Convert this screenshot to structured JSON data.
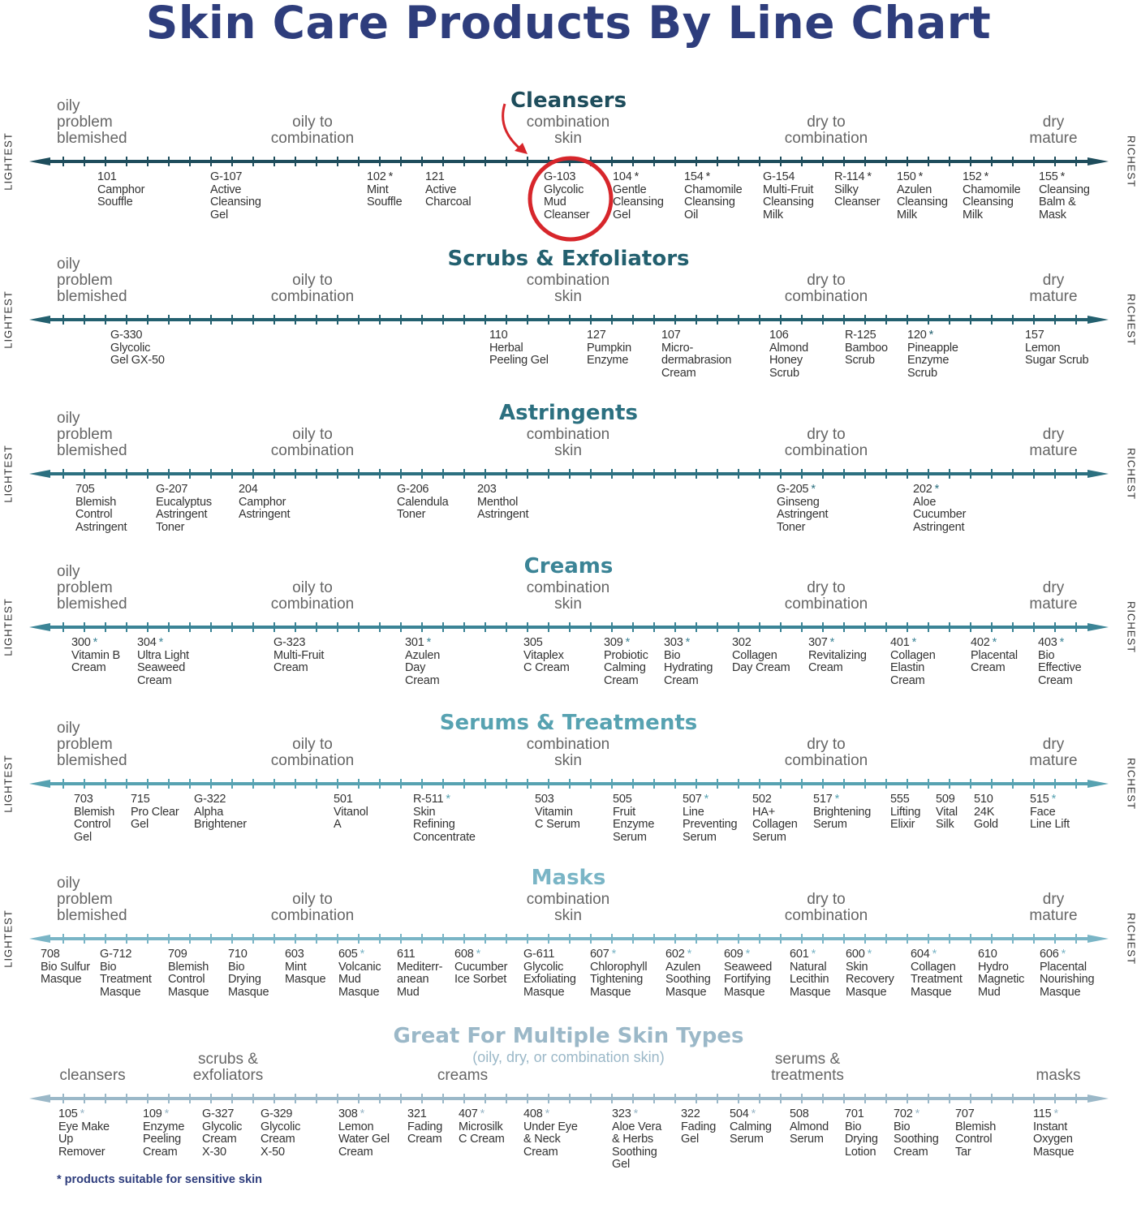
{
  "title": "Skin Care Products By Line Chart",
  "footnote": "* products suitable for sensitive skin",
  "axis_left_label": "LIGHTEST",
  "axis_right_label": "RICHEST",
  "default_skin_types": [
    "oily\nproblem\nblemished",
    "oily to\ncombination",
    "combination\nskin",
    "dry to\ncombination",
    "dry\nmature"
  ],
  "highlight": {
    "product": "G-103",
    "color": "#d7262b"
  },
  "sections": [
    {
      "title": "Cleansers",
      "color": "#1e4d5c",
      "products": [
        {
          "code": "101",
          "sensitive": false,
          "name": "Camphor\nSouffle"
        },
        {
          "code": "G-107",
          "sensitive": false,
          "name": "Active\nCleansing\nGel"
        },
        {
          "code": "102",
          "sensitive": true,
          "name": "Mint\nSouffle"
        },
        {
          "code": "121",
          "sensitive": false,
          "name": "Active\nCharcoal"
        },
        {
          "code": "G-103",
          "sensitive": false,
          "name": "Glycolic\nMud\nCleanser"
        },
        {
          "code": "104",
          "sensitive": true,
          "name": "Gentle\nCleansing\nGel"
        },
        {
          "code": "154",
          "sensitive": true,
          "name": "Chamomile\nCleansing\nOil"
        },
        {
          "code": "G-154",
          "sensitive": false,
          "name": "Multi-Fruit\nCleansing\nMilk"
        },
        {
          "code": "R-114",
          "sensitive": true,
          "name": "Silky\nCleanser"
        },
        {
          "code": "150",
          "sensitive": true,
          "name": "Azulen\nCleansing\nMilk"
        },
        {
          "code": "152",
          "sensitive": true,
          "name": "Chamomile\nCleansing\nMilk"
        },
        {
          "code": "155",
          "sensitive": true,
          "name": "Cleansing\nBalm &\nMask"
        }
      ]
    },
    {
      "title": "Scrubs & Exfoliators",
      "color": "#23606f",
      "products": [
        {
          "code": "G-330",
          "sensitive": false,
          "name": "Glycolic\nGel GX-50"
        },
        {
          "code": "110",
          "sensitive": false,
          "name": "Herbal\nPeeling Gel"
        },
        {
          "code": "127",
          "sensitive": false,
          "name": "Pumpkin\nEnzyme"
        },
        {
          "code": "107",
          "sensitive": false,
          "name": "Micro-\ndermabrasion\nCream"
        },
        {
          "code": "106",
          "sensitive": false,
          "name": "Almond\nHoney\nScrub"
        },
        {
          "code": "R-125",
          "sensitive": false,
          "name": "Bamboo\nScrub"
        },
        {
          "code": "120",
          "sensitive": true,
          "name": "Pineapple\nEnzyme\nScrub"
        },
        {
          "code": "157",
          "sensitive": false,
          "name": "Lemon\nSugar Scrub"
        }
      ]
    },
    {
      "title": "Astringents",
      "color": "#2c7080",
      "products": [
        {
          "code": "705",
          "sensitive": false,
          "name": "Blemish\nControl\nAstringent"
        },
        {
          "code": "G-207",
          "sensitive": false,
          "name": "Eucalyptus\nAstringent\nToner"
        },
        {
          "code": "204",
          "sensitive": false,
          "name": "Camphor\nAstringent"
        },
        {
          "code": "G-206",
          "sensitive": false,
          "name": "Calendula\nToner"
        },
        {
          "code": "203",
          "sensitive": false,
          "name": "Menthol\nAstringent"
        },
        {
          "code": "G-205",
          "sensitive": true,
          "name": "Ginseng\nAstringent\nToner"
        },
        {
          "code": "202",
          "sensitive": true,
          "name": "Aloe\nCucumber\nAstringent"
        }
      ]
    },
    {
      "title": "Creams",
      "color": "#3b8496",
      "products": [
        {
          "code": "300",
          "sensitive": true,
          "name": "Vitamin B\nCream"
        },
        {
          "code": "304",
          "sensitive": true,
          "name": "Ultra Light\nSeaweed\nCream"
        },
        {
          "code": "G-323",
          "sensitive": false,
          "name": "Multi-Fruit\nCream"
        },
        {
          "code": "301",
          "sensitive": true,
          "name": "Azulen\nDay\nCream"
        },
        {
          "code": "305",
          "sensitive": false,
          "name": "Vitaplex\nC Cream"
        },
        {
          "code": "309",
          "sensitive": true,
          "name": "Probiotic\nCalming\nCream"
        },
        {
          "code": "303",
          "sensitive": true,
          "name": "Bio\nHydrating\nCream"
        },
        {
          "code": "302",
          "sensitive": false,
          "name": "Collagen\nDay Cream"
        },
        {
          "code": "307",
          "sensitive": true,
          "name": "Revitalizing\nCream"
        },
        {
          "code": "401",
          "sensitive": true,
          "name": "Collagen\nElastin\nCream"
        },
        {
          "code": "402",
          "sensitive": true,
          "name": "Placental\nCream"
        },
        {
          "code": "403",
          "sensitive": true,
          "name": "Bio\nEffective\nCream"
        }
      ]
    },
    {
      "title": "Serums & Treatments",
      "color": "#57a2b1",
      "products": [
        {
          "code": "703",
          "sensitive": false,
          "name": "Blemish\nControl\nGel"
        },
        {
          "code": "715",
          "sensitive": false,
          "name": "Pro Clear\nGel"
        },
        {
          "code": "G-322",
          "sensitive": false,
          "name": "Alpha\nBrightener"
        },
        {
          "code": "501",
          "sensitive": false,
          "name": "Vitanol\nA"
        },
        {
          "code": "R-511",
          "sensitive": true,
          "name": "Skin\nRefining\nConcentrate"
        },
        {
          "code": "503",
          "sensitive": false,
          "name": "Vitamin\nC Serum"
        },
        {
          "code": "505",
          "sensitive": false,
          "name": "Fruit\nEnzyme\nSerum"
        },
        {
          "code": "507",
          "sensitive": true,
          "name": "Line\nPreventing\nSerum"
        },
        {
          "code": "502",
          "sensitive": false,
          "name": "HA+\nCollagen\nSerum"
        },
        {
          "code": "517",
          "sensitive": true,
          "name": "Brightening\nSerum"
        },
        {
          "code": "555",
          "sensitive": false,
          "name": "Lifting\nElixir"
        },
        {
          "code": "509",
          "sensitive": false,
          "name": "Vital\nSilk"
        },
        {
          "code": "510",
          "sensitive": false,
          "name": "24K\nGold"
        },
        {
          "code": "515",
          "sensitive": true,
          "name": "Face\nLine Lift"
        }
      ]
    },
    {
      "title": "Masks",
      "color": "#7ab5c6",
      "products": [
        {
          "code": "708",
          "sensitive": false,
          "name": "Bio Sulfur\nMasque"
        },
        {
          "code": "G-712",
          "sensitive": false,
          "name": "Bio\nTreatment\nMasque"
        },
        {
          "code": "709",
          "sensitive": false,
          "name": "Blemish\nControl\nMasque"
        },
        {
          "code": "710",
          "sensitive": false,
          "name": "Bio\nDrying\nMasque"
        },
        {
          "code": "603",
          "sensitive": false,
          "name": "Mint\nMasque"
        },
        {
          "code": "605",
          "sensitive": true,
          "name": "Volcanic\nMud\nMasque"
        },
        {
          "code": "611",
          "sensitive": false,
          "name": "Mediterr-\nanean\nMud"
        },
        {
          "code": "608",
          "sensitive": true,
          "name": "Cucumber\nIce Sorbet"
        },
        {
          "code": "G-611",
          "sensitive": false,
          "name": "Glycolic\nExfoliating\nMasque"
        },
        {
          "code": "607",
          "sensitive": true,
          "name": "Chlorophyll\nTightening\nMasque"
        },
        {
          "code": "602",
          "sensitive": true,
          "name": "Azulen\nSoothing\nMasque"
        },
        {
          "code": "609",
          "sensitive": true,
          "name": "Seaweed\nFortifying\nMasque"
        },
        {
          "code": "601",
          "sensitive": true,
          "name": "Natural\nLecithin\nMasque"
        },
        {
          "code": "600",
          "sensitive": true,
          "name": "Skin\nRecovery\nMasque"
        },
        {
          "code": "604",
          "sensitive": true,
          "name": "Collagen\nTreatment\nMasque"
        },
        {
          "code": "610",
          "sensitive": false,
          "name": "Hydro\nMagnetic\nMud"
        },
        {
          "code": "606",
          "sensitive": true,
          "name": "Placental\nNourishing\nMasque"
        }
      ]
    },
    {
      "title": "Great For Multiple Skin Types",
      "subtitle": "(oily, dry, or combination skin)",
      "color": "#9bb8c8",
      "skin_types": [
        "cleansers",
        "scrubs &\nexfoliators",
        "creams",
        "serums &\ntreatments",
        "masks"
      ],
      "products": [
        {
          "code": "105",
          "sensitive": true,
          "name": "Eye Make\nUp\nRemover"
        },
        {
          "code": "109",
          "sensitive": true,
          "name": "Enzyme\nPeeling\nCream"
        },
        {
          "code": "G-327",
          "sensitive": false,
          "name": "Glycolic\nCream\nX-30"
        },
        {
          "code": "G-329",
          "sensitive": false,
          "name": "Glycolic\nCream\nX-50"
        },
        {
          "code": "308",
          "sensitive": true,
          "name": "Lemon\nWater Gel\nCream"
        },
        {
          "code": "321",
          "sensitive": false,
          "name": "Fading\nCream"
        },
        {
          "code": "407",
          "sensitive": true,
          "name": "Microsilk\nC Cream"
        },
        {
          "code": "408",
          "sensitive": true,
          "name": "Under Eye\n& Neck\nCream"
        },
        {
          "code": "323",
          "sensitive": true,
          "name": "Aloe Vera\n& Herbs\nSoothing\nGel"
        },
        {
          "code": "322",
          "sensitive": false,
          "name": "Fading\nGel"
        },
        {
          "code": "504",
          "sensitive": true,
          "name": "Calming\nSerum"
        },
        {
          "code": "508",
          "sensitive": false,
          "name": "Almond\nSerum"
        },
        {
          "code": "701",
          "sensitive": false,
          "name": "Bio\nDrying\nLotion"
        },
        {
          "code": "702",
          "sensitive": true,
          "name": "Bio\nSoothing\nCream"
        },
        {
          "code": "707",
          "sensitive": false,
          "name": "Blemish\nControl\nTar"
        },
        {
          "code": "115",
          "sensitive": true,
          "name": "Instant\nOxygen\nMasque"
        }
      ]
    }
  ]
}
